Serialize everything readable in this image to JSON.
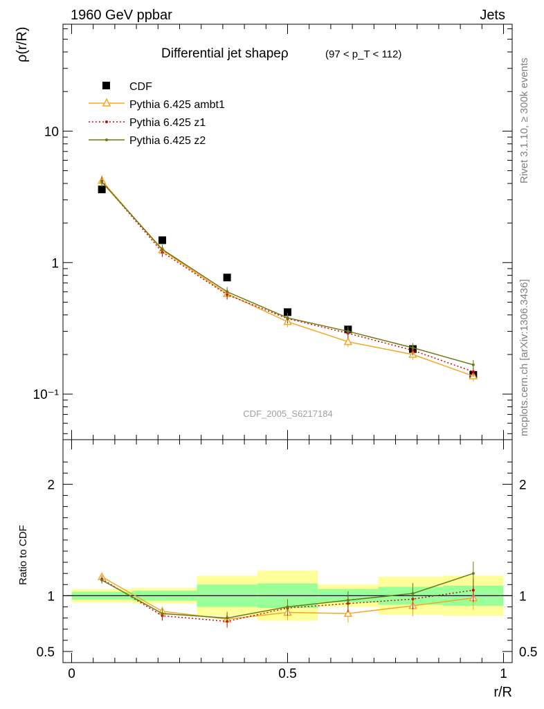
{
  "header": {
    "left": "1960 GeV ppbar",
    "right": "Jets"
  },
  "side_labels": {
    "rivet": "Rivet 3.1.10, ≥ 300k events",
    "mcplots": "mcplots.cern.ch [arXiv:1306.3436]"
  },
  "chart_data": [
    {
      "type": "line",
      "panel": "main",
      "title": "Differential jet shapeρ",
      "title_suffix": "(97 < p_T < 112)",
      "ylabel": "ρ(r/R)",
      "xlabel": "",
      "yscale": "log",
      "ylim": [
        0.045,
        65
      ],
      "xlim": [
        -0.02,
        1.02
      ],
      "yticks": [
        "10⁻¹",
        "1",
        "10"
      ],
      "watermark": "CDF_2005_S6217184",
      "legend_position": "top-left",
      "x": [
        0.07,
        0.21,
        0.36,
        0.5,
        0.64,
        0.79,
        0.93
      ],
      "series": [
        {
          "name": "CDF",
          "color": "#000000",
          "marker": "filled-square",
          "line": "none",
          "values": [
            3.6,
            1.48,
            0.77,
            0.42,
            0.31,
            0.22,
            0.14
          ]
        },
        {
          "name": "Pythia 6.425 ambt1",
          "color": "#f5a623",
          "marker": "open-triangle",
          "line": "solid",
          "values": [
            4.2,
            1.24,
            0.58,
            0.355,
            0.25,
            0.2,
            0.137
          ]
        },
        {
          "name": "Pythia 6.425 z1",
          "color": "#d40000",
          "marker": "dot",
          "line": "dotted",
          "values": [
            4.15,
            1.2,
            0.57,
            0.375,
            0.29,
            0.215,
            0.148
          ]
        },
        {
          "name": "Pythia 6.425 z2",
          "color": "#6b7a0f",
          "marker": "dot",
          "line": "solid",
          "values": [
            4.1,
            1.26,
            0.6,
            0.38,
            0.3,
            0.225,
            0.167
          ]
        }
      ]
    },
    {
      "type": "line",
      "panel": "ratio",
      "ylabel": "Ratio to CDF",
      "xlabel": "r/R",
      "ylim": [
        0.4,
        2.4
      ],
      "yticks": [
        "0.5",
        "1",
        "2"
      ],
      "xticks": [
        "0",
        "0.5",
        "1"
      ],
      "x": [
        0.07,
        0.21,
        0.36,
        0.5,
        0.64,
        0.79,
        0.93
      ],
      "bands": {
        "bin_edges": [
          0.0,
          0.14,
          0.29,
          0.43,
          0.57,
          0.71,
          0.86,
          1.0
        ],
        "inner": [
          [
            0.965,
            1.035
          ],
          [
            0.955,
            1.045
          ],
          [
            0.9,
            1.1
          ],
          [
            0.89,
            1.11
          ],
          [
            0.94,
            1.06
          ],
          [
            0.92,
            1.08
          ],
          [
            0.91,
            1.09
          ]
        ],
        "outer": [
          [
            0.94,
            1.06
          ],
          [
            0.93,
            1.07
          ],
          [
            0.82,
            1.18
          ],
          [
            0.775,
            1.225
          ],
          [
            0.9,
            1.1
          ],
          [
            0.83,
            1.17
          ],
          [
            0.82,
            1.18
          ]
        ]
      },
      "series": [
        {
          "name": "Pythia 6.425 ambt1",
          "values": [
            1.17,
            0.86,
            0.79,
            0.85,
            0.84,
            0.91,
            0.98
          ]
        },
        {
          "name": "Pythia 6.425 z1",
          "values": [
            1.15,
            0.82,
            0.77,
            0.89,
            0.93,
            0.97,
            1.05
          ]
        },
        {
          "name": "Pythia 6.425 z2",
          "values": [
            1.14,
            0.84,
            0.8,
            0.9,
            0.96,
            1.02,
            1.2
          ]
        }
      ]
    }
  ]
}
